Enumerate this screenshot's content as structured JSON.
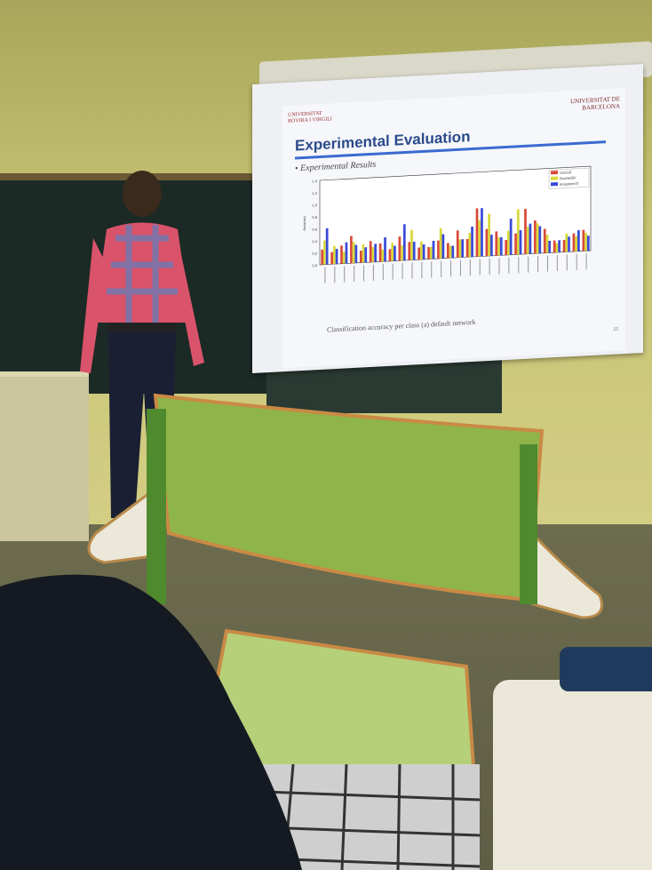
{
  "scene": {
    "description_free": true,
    "colors": {
      "wall": "#c6c272",
      "board": "#1c2a26",
      "chair": "#8fb54a",
      "shirt_red": "#d9536a",
      "shirt_blue": "#5d7fbf"
    }
  },
  "slide": {
    "uni_left_line1": "UNIVERSITAT",
    "uni_left_line2": "ROVIRA I VIRGILI",
    "uni_right_line1": "UNIVERSITAT DE",
    "uni_right_line2": "BARCELONA",
    "title": "Experimental Evaluation",
    "bullet": "Experimental Results",
    "caption": "Classification accuracy per class (a) default network",
    "page_number": "12"
  },
  "chart_data": {
    "type": "bar",
    "ylabel": "Accuracy",
    "ylim": [
      0,
      1.4
    ],
    "yticks": [
      "0.0",
      "0.2",
      "0.4",
      "0.6",
      "0.8",
      "1.0",
      "1.2",
      "1.4"
    ],
    "series": [
      {
        "name": "VGG16",
        "color": "#d94a3a",
        "values": [
          0.25,
          0.2,
          0.3,
          0.45,
          0.2,
          0.35,
          0.3,
          0.2,
          0.4,
          0.3,
          0.2,
          0.2,
          0.3,
          0.25,
          0.45,
          0.3,
          0.8,
          0.45,
          0.4,
          0.25,
          0.35,
          0.75,
          0.55,
          0.4,
          0.2,
          0.2,
          0.3,
          0.35
        ]
      },
      {
        "name": "ResNet50",
        "color": "#d8d83a",
        "values": [
          0.4,
          0.3,
          0.2,
          0.35,
          0.3,
          0.25,
          0.2,
          0.3,
          0.25,
          0.5,
          0.3,
          0.2,
          0.5,
          0.2,
          0.3,
          0.4,
          0.6,
          0.7,
          0.3,
          0.4,
          0.75,
          0.45,
          0.5,
          0.3,
          0.15,
          0.3,
          0.25,
          0.3
        ]
      },
      {
        "name": "InceptionV3",
        "color": "#3a4ad9",
        "values": [
          0.6,
          0.25,
          0.35,
          0.3,
          0.25,
          0.3,
          0.4,
          0.25,
          0.6,
          0.3,
          0.25,
          0.3,
          0.4,
          0.2,
          0.3,
          0.5,
          0.8,
          0.35,
          0.3,
          0.6,
          0.4,
          0.5,
          0.45,
          0.2,
          0.2,
          0.25,
          0.35,
          0.25
        ]
      }
    ],
    "categories": [
      "",
      "",
      "",
      "",
      "",
      "",
      "",
      "",
      "",
      "",
      "",
      "",
      "",
      "",
      "",
      "",
      "",
      "",
      "",
      "",
      "",
      "",
      "",
      "",
      "",
      "",
      "",
      ""
    ],
    "legend": "top-right",
    "grid": false
  }
}
